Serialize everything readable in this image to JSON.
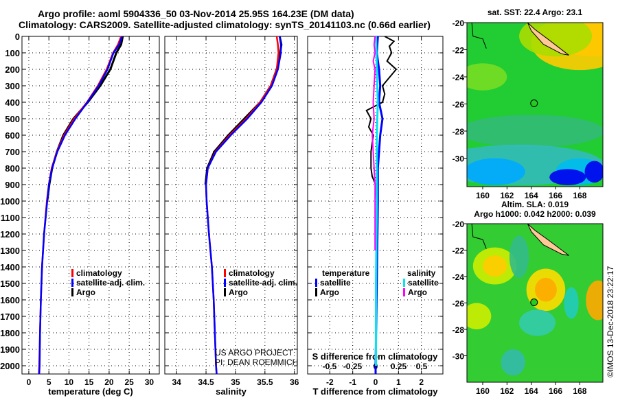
{
  "header": {
    "title_line1": "Argo profile: aoml 5904336_50 03-Nov-2014 25.95S 164.23E (DM data)",
    "title_line2": "Climatology: CARS2009. Satellite-adjusted climatology: synTS_20141103.nc (0.66d earlier)"
  },
  "colors": {
    "climatology": "#ff0000",
    "satellite": "#0000ff",
    "argo": "#000000",
    "sal_satellite": "#00e5ee",
    "sal_argo": "#ff00ff"
  },
  "credits": {
    "line1": "US ARGO PROJECT",
    "line2": "PI: DEAN ROEMMICH",
    "stamp": "©IMOS 13-Dec-2018 23:22:17"
  },
  "chart_data": [
    {
      "type": "line",
      "xlabel": "temperature (deg C)",
      "ylabel": "",
      "xlim": [
        -1.7,
        32.5
      ],
      "ylim": [
        2050,
        0
      ],
      "xticks": [
        0,
        5,
        10,
        15,
        20,
        25,
        30
      ],
      "yticks": [
        0,
        100,
        200,
        300,
        400,
        500,
        600,
        700,
        800,
        900,
        1000,
        1100,
        1200,
        1300,
        1400,
        1500,
        1600,
        1700,
        1800,
        1900,
        2000
      ],
      "legend": [
        "climatology",
        "satellite-adj. clim.",
        "Argo"
      ],
      "legend_position": "lower-center",
      "series": [
        {
          "name": "climatology",
          "depth": [
            0,
            50,
            100,
            200,
            300,
            400,
            500,
            600,
            700,
            800,
            900,
            1000,
            1200,
            1400,
            1600,
            1800,
            2000,
            2050
          ],
          "values": [
            23,
            22.2,
            21,
            19.4,
            17.2,
            14.5,
            11.3,
            8.8,
            7.0,
            5.7,
            5.0,
            4.5,
            3.8,
            3.3,
            3.0,
            2.8,
            2.6,
            2.5
          ]
        },
        {
          "name": "satellite-adj. clim.",
          "depth": [
            0,
            50,
            100,
            200,
            300,
            400,
            500,
            600,
            700,
            800,
            900,
            1000,
            1200,
            1400,
            1600,
            1800,
            2000,
            2050
          ],
          "values": [
            23.2,
            22.5,
            21.1,
            19.6,
            17.4,
            14.6,
            11.6,
            9.0,
            7.1,
            5.8,
            5.0,
            4.6,
            3.8,
            3.3,
            3.0,
            2.8,
            2.7,
            2.6
          ]
        },
        {
          "name": "Argo",
          "depth": [
            0,
            50,
            100,
            200,
            300,
            400,
            500,
            600,
            700,
            800,
            900,
            1000
          ],
          "values": [
            23.4,
            23,
            21.8,
            20.3,
            17.8,
            14.7,
            11.1,
            8.6,
            7.0,
            5.8,
            5.1,
            4.6
          ]
        }
      ]
    },
    {
      "type": "line",
      "xlabel": "salinity",
      "xlim": [
        33.8,
        36.05
      ],
      "ylim": [
        2050,
        0
      ],
      "xticks": [
        34,
        34.5,
        35,
        35.5,
        36
      ],
      "legend": [
        "climatology",
        "satellite-adj. clim.",
        "Argo"
      ],
      "legend_position": "lower-right",
      "series": [
        {
          "name": "climatology",
          "depth": [
            0,
            50,
            100,
            200,
            300,
            400,
            500,
            600,
            700,
            800,
            900,
            1000,
            1200,
            1400,
            1600,
            1800,
            2000,
            2050
          ],
          "values": [
            35.7,
            35.72,
            35.73,
            35.7,
            35.6,
            35.42,
            35.18,
            34.9,
            34.66,
            34.53,
            34.5,
            34.51,
            34.55,
            34.6,
            34.63,
            34.65,
            34.67,
            34.68
          ]
        },
        {
          "name": "satellite-adj. clim.",
          "depth": [
            0,
            50,
            100,
            200,
            300,
            400,
            500,
            600,
            700,
            800,
            900,
            1000,
            1200,
            1400,
            1600,
            1800,
            2000,
            2050
          ],
          "values": [
            35.75,
            35.77,
            35.77,
            35.72,
            35.62,
            35.44,
            35.2,
            34.92,
            34.67,
            34.53,
            34.5,
            34.51,
            34.55,
            34.6,
            34.63,
            34.65,
            34.67,
            34.68
          ]
        },
        {
          "name": "Argo",
          "depth": [
            0,
            50,
            100,
            200,
            300,
            400,
            500,
            600,
            700,
            800,
            900
          ],
          "values": [
            35.75,
            35.78,
            35.76,
            35.7,
            35.6,
            35.42,
            35.15,
            34.88,
            34.64,
            34.52,
            34.49
          ]
        }
      ]
    },
    {
      "type": "line",
      "xlabel": "T difference from climatology",
      "x2label": "S difference from climatology",
      "xlim": [
        -2.97,
        2.94
      ],
      "xticks": [
        -2,
        -1,
        0,
        1,
        2
      ],
      "x2ticks": [
        "-0.5",
        "-0.25",
        "0",
        "0.25",
        "0.5"
      ],
      "ylim": [
        2050,
        0
      ],
      "legend_left_title": "temperature",
      "legend_right_title": "salinity",
      "legend_left": [
        "satellite",
        "Argo"
      ],
      "legend_right": [
        "satellite",
        "Argo"
      ],
      "series": [
        {
          "name": "T satellite",
          "depth": [
            0,
            100,
            200,
            300,
            400,
            500,
            600,
            800,
            1000,
            1500,
            2000,
            2050
          ],
          "values": [
            0.1,
            0.05,
            0.15,
            0.2,
            0.15,
            0.3,
            0.2,
            0.1,
            0.1,
            0.05,
            0.0,
            0.0
          ]
        },
        {
          "name": "T Argo",
          "depth": [
            0,
            30,
            60,
            100,
            150,
            200,
            250,
            300,
            350,
            400,
            450,
            500,
            550,
            600,
            700,
            800,
            850,
            900,
            1000
          ],
          "values": [
            0.4,
            0.8,
            0.6,
            0.7,
            0.5,
            0.9,
            0.6,
            0.3,
            0.4,
            0.3,
            -0.4,
            -0.2,
            -0.3,
            -0.1,
            -0.2,
            -0.2,
            -0.15,
            0.0,
            0.05
          ]
        },
        {
          "name": "S satellite",
          "depth": [
            0,
            200,
            400,
            600,
            800,
            1000,
            1500,
            2000
          ],
          "values": [
            0.01,
            0.02,
            0.03,
            0.02,
            0.02,
            0.02,
            0.01,
            0.01
          ]
        },
        {
          "name": "S Argo",
          "depth": [
            0,
            50,
            100,
            150,
            200,
            300,
            400,
            500,
            600,
            700,
            800,
            900,
            1000,
            1300
          ],
          "values": [
            0.0,
            -0.01,
            0.0,
            -0.02,
            0.0,
            -0.01,
            -0.02,
            -0.01,
            -0.03,
            -0.02,
            -0.01,
            0.0,
            0.0,
            0.0
          ]
        }
      ]
    },
    {
      "type": "heatmap",
      "title": "sat. SST: 22.4 Argo: 23.1",
      "xlim": [
        158.7,
        169.9
      ],
      "ylim": [
        -32.1,
        -20
      ],
      "xticks": [
        160,
        162,
        164,
        166,
        168
      ],
      "yticks": [
        -20,
        -22,
        -24,
        -26,
        -28,
        -30
      ],
      "marker": {
        "lon": 164.23,
        "lat": -25.95
      }
    },
    {
      "type": "heatmap",
      "title_line1": "Altim. SLA: 0.019",
      "title_line2": "Argo h1000: 0.042 h2000: 0.039",
      "xlim": [
        158.7,
        169.9
      ],
      "ylim": [
        -32,
        -20
      ],
      "xticks": [
        160,
        162,
        164,
        166,
        168
      ],
      "yticks": [
        -20,
        -22,
        -24,
        -26,
        -28,
        -30
      ],
      "marker": {
        "lon": 164.23,
        "lat": -25.95
      }
    }
  ]
}
